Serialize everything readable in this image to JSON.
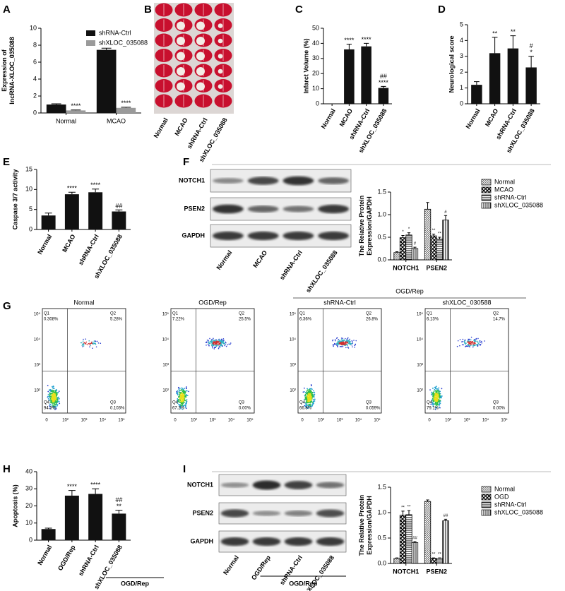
{
  "chart_data": [
    {
      "type": "bar",
      "label": "A",
      "ylabel": [
        "Expression of",
        "lncRNA-XLOC_035088"
      ],
      "categories": [
        "Normal",
        "MCAO"
      ],
      "series": [
        {
          "name": "shRNA-Ctrl",
          "color": "#111111",
          "values": [
            1.0,
            7.45
          ],
          "errors": [
            0.08,
            0.2
          ],
          "significance": [
            null,
            null
          ]
        },
        {
          "name": "shXLOC_035088",
          "color": "#9a9a9a",
          "values": [
            0.3,
            0.6
          ],
          "errors": [
            0.05,
            0.08
          ],
          "significance": [
            [
              "****"
            ],
            [
              "****"
            ]
          ]
        }
      ],
      "ylim": [
        0,
        10
      ],
      "yticks": [
        0,
        2,
        4,
        6,
        8,
        10
      ]
    },
    {
      "type": "bar",
      "label": "C",
      "ylabel": [
        "Infarct Volume (%)"
      ],
      "categories": [
        "Normal",
        "MCAO",
        "shRNA-Ctrl",
        "shXLOC_035088"
      ],
      "series": [
        {
          "color": "#111111",
          "values": [
            0,
            36,
            38,
            10.5
          ],
          "errors": [
            0,
            3.5,
            2,
            1
          ],
          "significance": [
            null,
            [
              "****"
            ],
            [
              "****"
            ],
            [
              "##",
              "****"
            ]
          ]
        }
      ],
      "ylim": [
        0,
        50
      ],
      "yticks": [
        0,
        10,
        20,
        30,
        40,
        50
      ]
    },
    {
      "type": "bar",
      "label": "D",
      "ylabel": [
        "Neurological score"
      ],
      "categories": [
        "Normal",
        "MCAO",
        "shRNA-Ctrl",
        "shXLOC_035088"
      ],
      "series": [
        {
          "color": "#111111",
          "values": [
            1.2,
            3.2,
            3.5,
            2.3
          ],
          "errors": [
            0.2,
            1.0,
            0.8,
            0.7
          ],
          "significance": [
            null,
            [
              "**"
            ],
            [
              "**"
            ],
            [
              "#",
              "*"
            ]
          ]
        }
      ],
      "ylim": [
        0,
        5
      ],
      "yticks": [
        0,
        1,
        2,
        3,
        4,
        5
      ]
    },
    {
      "type": "bar",
      "label": "E",
      "ylabel": [
        "Caspase 3/7 activity"
      ],
      "categories": [
        "Normal",
        "MCAO",
        "shRNA-Ctrl",
        "shXLOC_035088"
      ],
      "series": [
        {
          "color": "#111111",
          "values": [
            3.5,
            8.8,
            9.3,
            4.5
          ],
          "errors": [
            0.6,
            0.5,
            0.8,
            0.4
          ],
          "significance": [
            null,
            [
              "****"
            ],
            [
              "****"
            ],
            [
              "##"
            ]
          ]
        }
      ],
      "ylim": [
        0,
        15
      ],
      "yticks": [
        0,
        5,
        10,
        15
      ]
    },
    {
      "type": "bar",
      "ylabel": [
        "The Relative Protein",
        "Expression/GAPDH"
      ],
      "categories": [
        "NOTCH1",
        "PSEN2"
      ],
      "series": [
        {
          "name": "Normal",
          "pattern": "grid",
          "values": [
            0.16,
            1.12
          ],
          "errors": [
            0.02,
            0.15
          ],
          "significance": [
            null,
            null
          ]
        },
        {
          "name": "MCAO",
          "pattern": "checker",
          "values": [
            0.49,
            0.53
          ],
          "errors": [
            0.05,
            0.04
          ],
          "significance": [
            [
              "*"
            ],
            [
              "**"
            ]
          ]
        },
        {
          "name": "shRNA-Ctrl",
          "pattern": "hlines",
          "values": [
            0.55,
            0.46
          ],
          "errors": [
            0.05,
            0.04
          ],
          "significance": [
            [
              "*"
            ],
            [
              "**"
            ]
          ]
        },
        {
          "name": "shXLOC_035088",
          "pattern": "vlines",
          "values": [
            0.25,
            0.88
          ],
          "errors": [
            0.03,
            0.1
          ],
          "significance": [
            [
              "#"
            ],
            [
              "#"
            ]
          ]
        }
      ],
      "ylim": [
        0,
        1.5
      ],
      "yticks": [
        {
          "value": 0,
          "label": "0.0"
        },
        {
          "value": 0.5,
          "label": "0.5"
        },
        {
          "value": 1,
          "label": "1.0"
        },
        {
          "value": 1.5,
          "label": "1.5"
        }
      ]
    },
    {
      "type": "bar",
      "label": "H",
      "ylabel": [
        "Apoptosis (%)"
      ],
      "categories": [
        "Normal",
        "OGD/Rep",
        "shRNA-Ctrl",
        "shXLOC_035088"
      ],
      "group_label": "OGD/Rep",
      "series": [
        {
          "color": "#111111",
          "values": [
            6.5,
            26,
            27,
            15.5
          ],
          "errors": [
            0.5,
            3,
            3,
            2
          ],
          "significance": [
            null,
            [
              "****"
            ],
            [
              "****"
            ],
            [
              "##",
              "**"
            ]
          ]
        }
      ],
      "ylim": [
        0,
        40
      ],
      "yticks": [
        0,
        10,
        20,
        30,
        40
      ]
    },
    {
      "type": "bar",
      "ylabel": [
        "The Relative Protein",
        "Expression/GAPDH"
      ],
      "categories": [
        "NOTCH1",
        "PSEN2"
      ],
      "series": [
        {
          "name": "Normal",
          "pattern": "grid",
          "values": [
            0.1,
            1.22
          ],
          "errors": [
            0.01,
            0.03
          ],
          "significance": [
            null,
            null
          ]
        },
        {
          "name": "OGD",
          "pattern": "checker",
          "values": [
            0.95,
            0.1
          ],
          "errors": [
            0.08,
            0.01
          ],
          "significance": [
            [
              "**"
            ],
            [
              "**"
            ]
          ]
        },
        {
          "name": "shRNA-Ctrl",
          "pattern": "hlines",
          "values": [
            0.96,
            0.1
          ],
          "errors": [
            0.08,
            0.01
          ],
          "significance": [
            [
              "**"
            ],
            [
              "**"
            ]
          ]
        },
        {
          "name": "shXLOC_035088",
          "pattern": "vlines",
          "values": [
            0.41,
            0.84
          ],
          "errors": [
            0.02,
            0.03
          ],
          "significance": [
            [
              "##"
            ],
            [
              "##"
            ]
          ]
        }
      ],
      "ylim": [
        0,
        1.5
      ],
      "yticks": [
        {
          "value": 0,
          "label": "0.0"
        },
        {
          "value": 0.5,
          "label": "0.5"
        },
        {
          "value": 1,
          "label": "1.0"
        },
        {
          "value": 1.5,
          "label": "1.5"
        }
      ]
    }
  ],
  "brain": {
    "label": "B",
    "lanes": [
      "Normal",
      "MCAO",
      "shRNA-Ctrl",
      "shXLOC_035088"
    ]
  },
  "blots": [
    {
      "label": "F",
      "rows": [
        "NOTCH1",
        "PSEN2",
        "GAPDH"
      ],
      "lanes": [
        "Normal",
        "MCAO",
        "shRNA-Ctrl",
        "shXLOC_035088"
      ]
    },
    {
      "label": "I",
      "rows": [
        "NOTCH1",
        "PSEN2",
        "GAPDH"
      ],
      "lanes": [
        "Normal",
        "OGD/Rep",
        "shRNA-Ctrl",
        "shXLOC_035088"
      ],
      "group": "OGD/Rep"
    }
  ],
  "flow": {
    "label": "G",
    "group": "OGD/Rep",
    "xticks": [
      "0",
      "10²",
      "10³",
      "10⁴",
      "10⁵"
    ],
    "yticks": [
      "10⁵",
      "10⁴",
      "10³",
      "10²"
    ],
    "plots": [
      {
        "title": "Normal",
        "quadrants": [
          {
            "name": "Q1",
            "value": "0.308%"
          },
          {
            "name": "Q2",
            "value": "5.28%"
          },
          {
            "name": "Q3",
            "value": "0.103%"
          },
          {
            "name": "Q4",
            "value": "94.3%"
          }
        ]
      },
      {
        "title": "OGD/Rep",
        "quadrants": [
          {
            "name": "Q1",
            "value": "7.22%"
          },
          {
            "name": "Q2",
            "value": "25.5%"
          },
          {
            "name": "Q3",
            "value": "0.00%"
          },
          {
            "name": "Q4",
            "value": "67.2%"
          }
        ]
      },
      {
        "title": "shRNA-Ctrl",
        "quadrants": [
          {
            "name": "Q1",
            "value": "6.36%"
          },
          {
            "name": "Q2",
            "value": "26.8%"
          },
          {
            "name": "Q3",
            "value": "0.059%"
          },
          {
            "name": "Q4",
            "value": "66.8%"
          }
        ]
      },
      {
        "title": "shXLOC_030588",
        "quadrants": [
          {
            "name": "Q1",
            "value": "6.13%"
          },
          {
            "name": "Q2",
            "value": "14.7%"
          },
          {
            "name": "Q3",
            "value": "0.00%"
          },
          {
            "name": "Q4",
            "value": "79.1%"
          }
        ]
      }
    ]
  }
}
